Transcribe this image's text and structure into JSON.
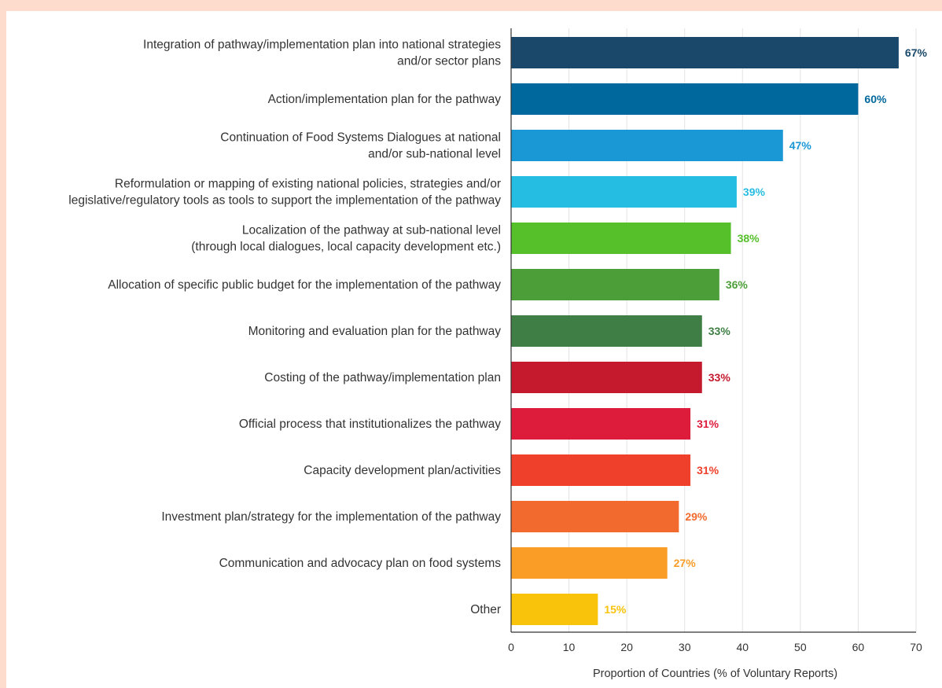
{
  "chart_data": {
    "type": "bar",
    "orientation": "horizontal",
    "categories": [
      [
        "Integration of pathway/implementation plan into national strategies",
        "and/or sector plans"
      ],
      [
        "Action/implementation plan for the pathway"
      ],
      [
        "Continuation of Food Systems Dialogues at national",
        "and/or sub-national level"
      ],
      [
        "Reformulation or mapping of existing national policies, strategies and/or",
        "legislative/regulatory tools as tools to support the implementation of the pathway"
      ],
      [
        "Localization of the pathway at sub-national level",
        "(through local dialogues, local capacity development etc.)"
      ],
      [
        "Allocation of specific public budget for the implementation of the pathway"
      ],
      [
        "Monitoring and evaluation plan for the pathway"
      ],
      [
        "Costing of the pathway/implementation plan"
      ],
      [
        "Official process that institutionalizes the pathway"
      ],
      [
        "Capacity development plan/activities"
      ],
      [
        "Investment plan/strategy for the implementation of the pathway"
      ],
      [
        "Communication and advocacy plan on food systems"
      ],
      [
        "Other"
      ]
    ],
    "values": [
      67,
      60,
      47,
      39,
      38,
      36,
      33,
      33,
      31,
      31,
      29,
      27,
      15
    ],
    "value_labels": [
      "67%",
      "60%",
      "47%",
      "39%",
      "38%",
      "36%",
      "33%",
      "33%",
      "31%",
      "31%",
      "29%",
      "27%",
      "15%"
    ],
    "colors": [
      "#19486a",
      "#00689d",
      "#1a97d5",
      "#26bde2",
      "#56c02b",
      "#4c9f38",
      "#3f7e44",
      "#c5192d",
      "#dd1c3b",
      "#ef402b",
      "#f26a2d",
      "#f99d26",
      "#f9c30c"
    ],
    "xlabel": "Proportion of Countries (% of Voluntary Reports)",
    "ylabel": "",
    "xlim": [
      0,
      70
    ],
    "xticks": [
      0,
      10,
      20,
      30,
      40,
      50,
      60,
      70
    ],
    "grid": true
  },
  "colors": {
    "frame": "#fddccd",
    "background": "#ffffff",
    "gridline": "#e3e3e3",
    "axis": "#333333"
  }
}
